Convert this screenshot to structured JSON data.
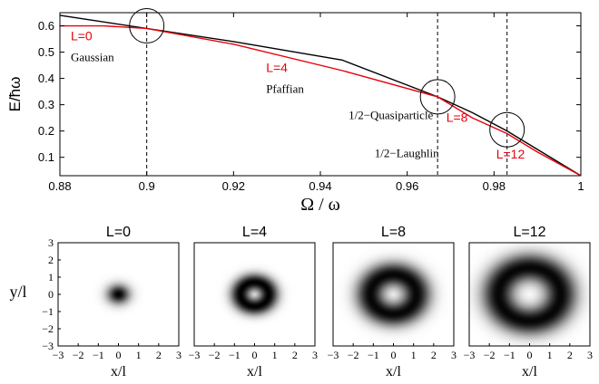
{
  "colors": {
    "black_line": "#000000",
    "red_line": "#e8000b",
    "red_text": "#e8000b"
  },
  "chart_data": [
    {
      "type": "line",
      "xlabel": "Ω / ω",
      "ylabel": "E/ħω",
      "xlim": [
        0.88,
        1.0
      ],
      "ylim": [
        0.03,
        0.65
      ],
      "xticks": [
        "0.88",
        "0.9",
        "0.92",
        "0.94",
        "0.96",
        "0.98",
        "1"
      ],
      "yticks": [
        "0.1",
        "0.2",
        "0.3",
        "0.4",
        "0.5",
        "0.6"
      ],
      "series": [
        {
          "color": "black",
          "x": [
            0.88,
            0.9,
            0.92,
            0.945,
            0.967,
            0.975,
            0.983,
            0.99,
            1.0
          ],
          "y": [
            0.64,
            0.59,
            0.54,
            0.47,
            0.33,
            0.27,
            0.2,
            0.13,
            0.03
          ]
        },
        {
          "color": "red",
          "x": [
            0.88,
            0.89,
            0.9,
            0.92,
            0.945,
            0.967,
            0.975,
            0.983,
            0.99,
            1.0
          ],
          "y": [
            0.6,
            0.6,
            0.59,
            0.53,
            0.43,
            0.33,
            0.25,
            0.19,
            0.12,
            0.03
          ]
        }
      ],
      "vlines": [
        0.9,
        0.967,
        0.983
      ],
      "circles": [
        {
          "x": 0.9,
          "y": 0.6
        },
        {
          "x": 0.967,
          "y": 0.33
        },
        {
          "x": 0.983,
          "y": 0.205
        }
      ],
      "annotations": [
        {
          "text": "L=0",
          "color": "red",
          "x": 0.8825,
          "y": 0.545
        },
        {
          "text": "Gaussian",
          "color": "black",
          "x": 0.8825,
          "y": 0.465
        },
        {
          "text": "L=4",
          "color": "red",
          "x": 0.9275,
          "y": 0.425
        },
        {
          "text": "Pfaffian",
          "color": "black",
          "x": 0.9275,
          "y": 0.345
        },
        {
          "text": "1/2−Quasiparticle",
          "color": "black",
          "x": 0.9465,
          "y": 0.245
        },
        {
          "text": "L=8",
          "color": "red",
          "x": 0.969,
          "y": 0.235
        },
        {
          "text": "1/2−Laughlin",
          "color": "black",
          "x": 0.9525,
          "y": 0.1
        },
        {
          "text": "L=12",
          "color": "red",
          "x": 0.9805,
          "y": 0.095
        }
      ]
    },
    {
      "type": "heatmap",
      "title": "L=0",
      "xlabel": "x/l",
      "ylabel": "y/l",
      "xlim": [
        -3,
        3
      ],
      "ylim": [
        -3,
        3
      ],
      "ring_radius": 0.0,
      "ring_width": 0.55,
      "peak_density": 1.0
    },
    {
      "type": "heatmap",
      "title": "L=4",
      "xlabel": "x/l",
      "xlim": [
        -3,
        3
      ],
      "ylim": [
        -3,
        3
      ],
      "ring_radius": 0.7,
      "ring_width": 0.5,
      "peak_density": 1.0
    },
    {
      "type": "heatmap",
      "title": "L=8",
      "xlabel": "x/l",
      "xlim": [
        -3,
        3
      ],
      "ylim": [
        -3,
        3
      ],
      "ring_radius": 1.15,
      "ring_width": 0.72,
      "peak_density": 0.98
    },
    {
      "type": "heatmap",
      "title": "L=12",
      "xlabel": "x/l",
      "xlim": [
        -3,
        3
      ],
      "ylim": [
        -3,
        3
      ],
      "ring_radius": 1.55,
      "ring_width": 0.82,
      "peak_density": 0.98
    }
  ],
  "heatmap_ticks": [
    "−3",
    "−2",
    "−1",
    "0",
    "1",
    "2",
    "3"
  ]
}
